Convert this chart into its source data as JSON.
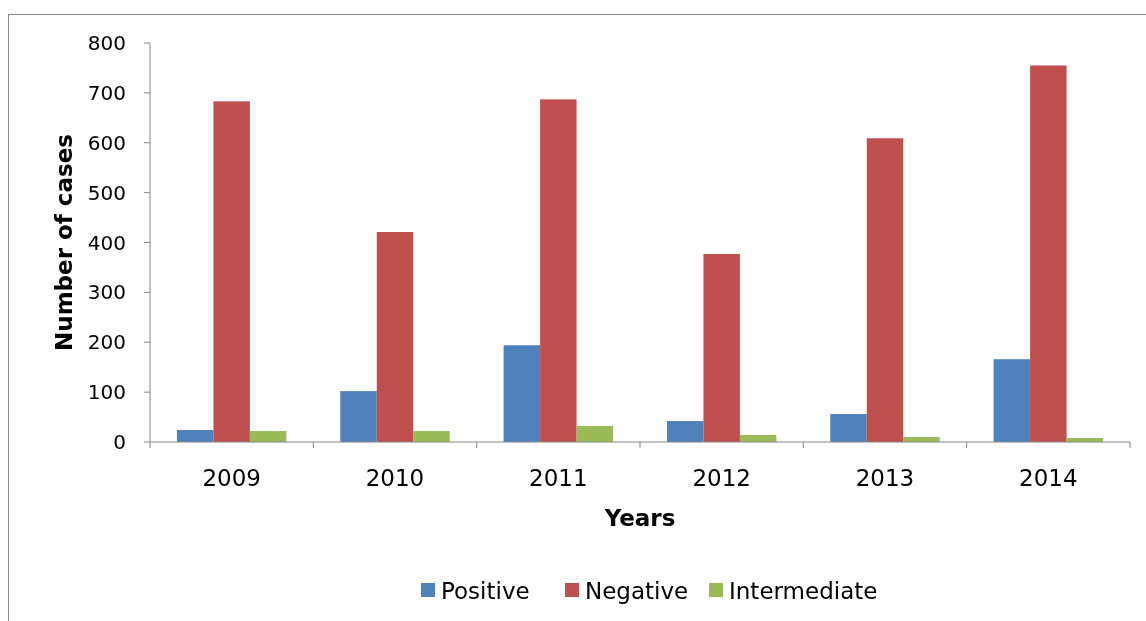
{
  "chart_data": {
    "type": "bar",
    "xlabel": "Years",
    "ylabel": "Number of cases",
    "categories": [
      "2009",
      "2010",
      "2011",
      "2012",
      "2013",
      "2014"
    ],
    "series": [
      {
        "name": "Positive",
        "color": "#4f81bd",
        "values": [
          24,
          102,
          194,
          42,
          56,
          166
        ]
      },
      {
        "name": "Negative",
        "color": "#c0504d",
        "values": [
          683,
          421,
          687,
          377,
          609,
          755
        ]
      },
      {
        "name": "Intermediate",
        "color": "#9bbb59",
        "values": [
          22,
          22,
          32,
          14,
          10,
          8
        ]
      }
    ],
    "ylim": [
      0,
      800
    ],
    "yticks": [
      0,
      100,
      200,
      300,
      400,
      500,
      600,
      700,
      800
    ],
    "grid": false,
    "legend": "bottom"
  }
}
